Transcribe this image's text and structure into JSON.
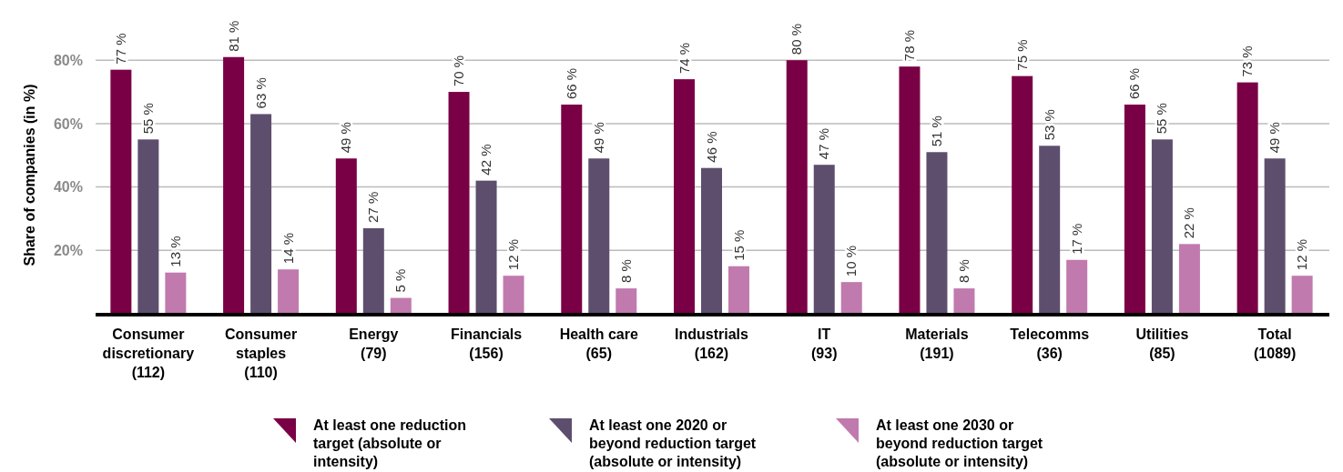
{
  "chart_data": {
    "type": "bar",
    "ylabel": "Share of companies (in %)",
    "categories": [
      "Consumer discretionary (112)",
      "Consumer staples (110)",
      "Energy (79)",
      "Financials (156)",
      "Health care (65)",
      "Industrials (162)",
      "IT (93)",
      "Materials (191)",
      "Telecomms (36)",
      "Utilities (85)",
      "Total (1089)"
    ],
    "series": [
      {
        "name": "At least one reduction target (absolute or intensity)",
        "color": "#7a0045",
        "values": [
          77,
          81,
          49,
          70,
          66,
          74,
          80,
          78,
          75,
          66,
          73
        ],
        "value_labels": [
          "77 %",
          "81 %",
          "49 %",
          "70 %",
          "66 %",
          "74 %",
          "80 %",
          "78 %",
          "75 %",
          "66 %",
          "73 %"
        ]
      },
      {
        "name": "At least one 2020 or beyond reduction target (absolute or intensity)",
        "color": "#5e4e6e",
        "values": [
          55,
          63,
          27,
          42,
          49,
          46,
          47,
          51,
          53,
          55,
          49
        ],
        "value_labels": [
          "55 %",
          "63 %",
          "27 %",
          "42 %",
          "49 %",
          "46 %",
          "47 %",
          "51 %",
          "53 %",
          "55 %",
          "49 %"
        ]
      },
      {
        "name": "At least one 2030 or beyond reduction target (absolute or intensity)",
        "color": "#c07aae",
        "values": [
          13,
          14,
          5,
          12,
          8,
          15,
          10,
          8,
          17,
          22,
          12
        ],
        "value_labels": [
          "13 %",
          "14 %",
          "5 %",
          "12 %",
          "8 %",
          "15 %",
          "10 %",
          "8 %",
          "17 %",
          "22 %",
          "12 %"
        ]
      }
    ],
    "ylim": [
      0,
      99
    ],
    "yticks": [
      {
        "value": 20,
        "label": "20%"
      },
      {
        "value": 40,
        "label": "40%"
      },
      {
        "value": 60,
        "label": "60%"
      },
      {
        "value": 80,
        "label": "80%"
      }
    ],
    "grid": "y",
    "legend": "bottom"
  }
}
